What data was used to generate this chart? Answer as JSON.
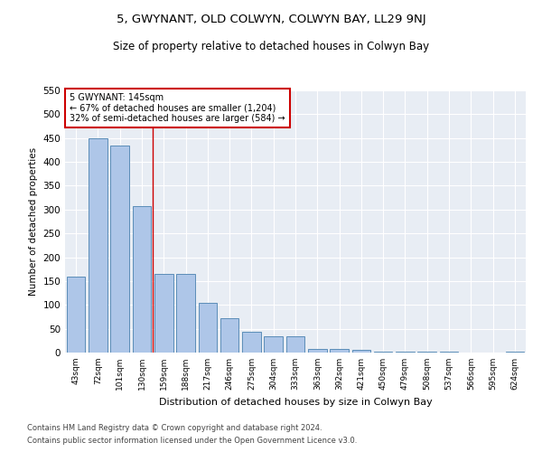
{
  "title": "5, GWYNANT, OLD COLWYN, COLWYN BAY, LL29 9NJ",
  "subtitle": "Size of property relative to detached houses in Colwyn Bay",
  "xlabel": "Distribution of detached houses by size in Colwyn Bay",
  "ylabel": "Number of detached properties",
  "categories": [
    "43sqm",
    "72sqm",
    "101sqm",
    "130sqm",
    "159sqm",
    "188sqm",
    "217sqm",
    "246sqm",
    "275sqm",
    "304sqm",
    "333sqm",
    "363sqm",
    "392sqm",
    "421sqm",
    "450sqm",
    "479sqm",
    "508sqm",
    "537sqm",
    "566sqm",
    "595sqm",
    "624sqm"
  ],
  "values": [
    160,
    450,
    435,
    307,
    165,
    165,
    105,
    73,
    43,
    34,
    34,
    8,
    8,
    5,
    1,
    1,
    1,
    1,
    0,
    0,
    2
  ],
  "bar_color": "#aec6e8",
  "bar_edge_color": "#5b8db8",
  "vline_x": 3.5,
  "vline_color": "#cc0000",
  "annotation_text": "5 GWYNANT: 145sqm\n← 67% of detached houses are smaller (1,204)\n32% of semi-detached houses are larger (584) →",
  "annotation_box_color": "#ffffff",
  "annotation_box_edge_color": "#cc0000",
  "ylim": [
    0,
    550
  ],
  "yticks": [
    0,
    50,
    100,
    150,
    200,
    250,
    300,
    350,
    400,
    450,
    500,
    550
  ],
  "bg_color": "#e8edf4",
  "footnote1": "Contains HM Land Registry data © Crown copyright and database right 2024.",
  "footnote2": "Contains public sector information licensed under the Open Government Licence v3.0."
}
